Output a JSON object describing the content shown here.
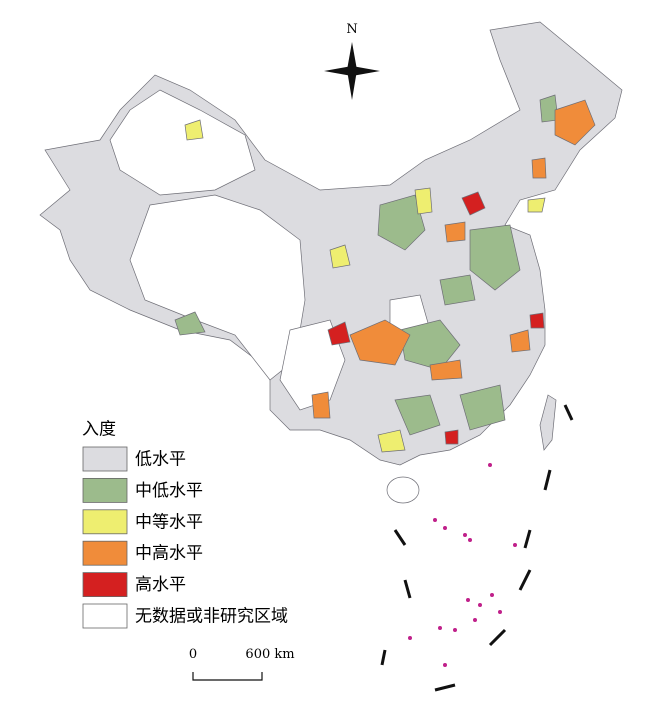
{
  "legend": {
    "title": "入度",
    "items": [
      {
        "label": "低水平",
        "color": "#dcdce0"
      },
      {
        "label": "中低水平",
        "color": "#9cbb8c"
      },
      {
        "label": "中等水平",
        "color": "#eeee70"
      },
      {
        "label": "中高水平",
        "color": "#f08c3a"
      },
      {
        "label": "高水平",
        "color": "#d42020"
      },
      {
        "label": "无数据或非研究区域",
        "color": "#ffffff"
      }
    ]
  },
  "compass": {
    "label": "N"
  },
  "scale_bar": {
    "labels": [
      "0",
      "600 km"
    ]
  }
}
